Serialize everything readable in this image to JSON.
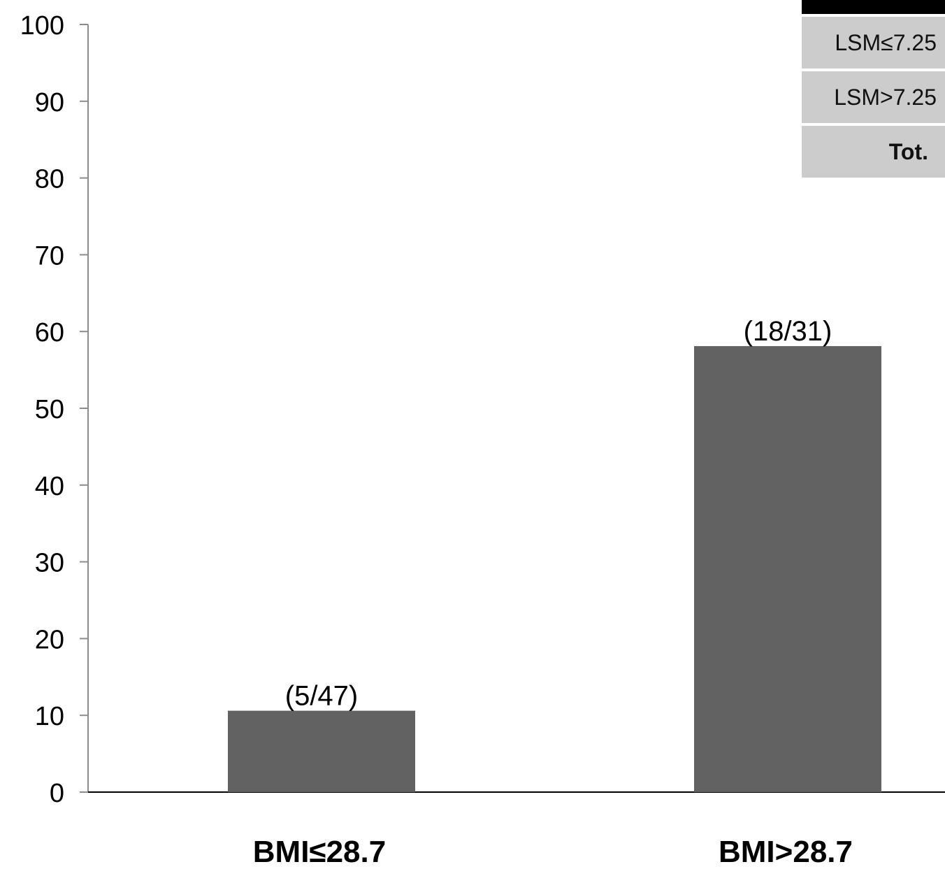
{
  "colors": {
    "bar": "#626262",
    "axis": "#000000",
    "table_fill": "#cccccc",
    "table_header": "#000000"
  },
  "side_table": {
    "rows": [
      "LSM≤7.25",
      "LSM>7.25",
      "Tot."
    ]
  },
  "chart_data": {
    "type": "bar",
    "categories": [
      "BMI≤28.7",
      "BMI>28.7"
    ],
    "values": [
      10.6,
      58.1
    ],
    "data_labels": [
      "(5/47)",
      "(18/31)"
    ],
    "title": "",
    "xlabel": "",
    "ylabel": "",
    "ylim": [
      0,
      100
    ],
    "yticks": [
      0,
      10,
      20,
      30,
      40,
      50,
      60,
      70,
      80,
      90,
      100
    ],
    "grid": false,
    "legend": "none"
  }
}
